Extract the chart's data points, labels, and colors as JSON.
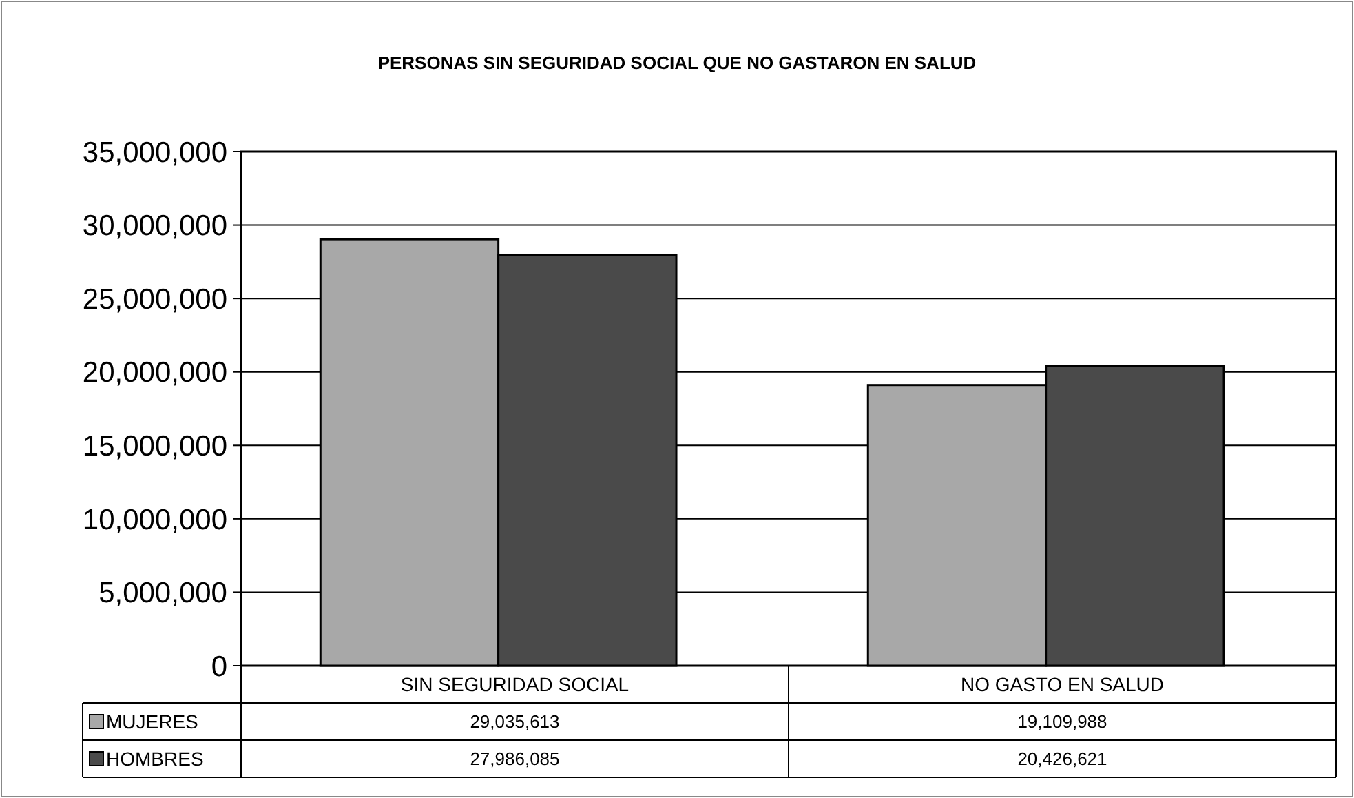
{
  "chart_data": {
    "type": "bar",
    "title": "PERSONAS SIN SEGURIDAD SOCIAL QUE NO GASTARON EN SALUD",
    "categories": [
      "SIN SEGURIDAD SOCIAL",
      "NO GASTO EN SALUD"
    ],
    "series": [
      {
        "name": "MUJERES",
        "color": "#a8a8a8",
        "values": [
          29035613,
          19109988
        ],
        "value_labels": [
          "29,035,613",
          "19,109,988"
        ]
      },
      {
        "name": "HOMBRES",
        "color": "#4a4a4a",
        "values": [
          27986085,
          20426621
        ],
        "value_labels": [
          "27,986,085",
          "20,426,621"
        ]
      }
    ],
    "ylim": [
      0,
      35000000
    ],
    "yticks": [
      {
        "value": 0,
        "label": "0"
      },
      {
        "value": 5000000,
        "label": "5,000,000"
      },
      {
        "value": 10000000,
        "label": "10,000,000"
      },
      {
        "value": 15000000,
        "label": "15,000,000"
      },
      {
        "value": 20000000,
        "label": "20,000,000"
      },
      {
        "value": 25000000,
        "label": "25,000,000"
      },
      {
        "value": 30000000,
        "label": "30,000,000"
      },
      {
        "value": 35000000,
        "label": "35,000,000"
      }
    ],
    "grid": "y",
    "legend": "bottom"
  }
}
